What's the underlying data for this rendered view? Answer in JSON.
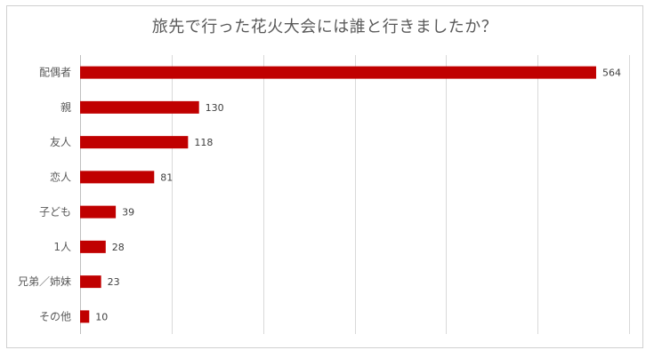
{
  "chart_data": {
    "type": "bar",
    "orientation": "horizontal",
    "title": "旅先で行った花火大会には誰と行きましたか？",
    "categories": [
      "配偶者",
      "親",
      "友人",
      "恋人",
      "子ども",
      "1人",
      "兄弟／姉妹",
      "その他"
    ],
    "values": [
      564,
      130,
      118,
      81,
      39,
      28,
      23,
      10
    ],
    "xlim": [
      0,
      600
    ],
    "grid": true,
    "legend": "none",
    "bar_color": "#c00000"
  }
}
